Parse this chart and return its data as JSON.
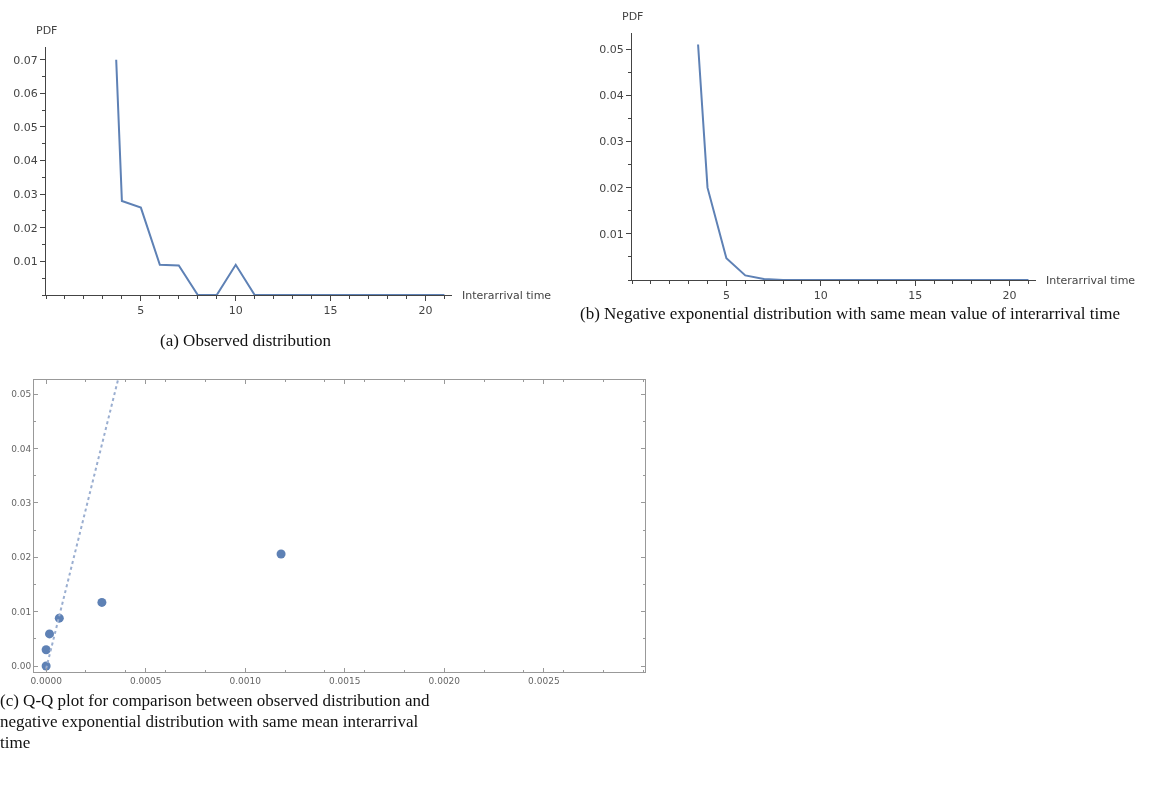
{
  "chart_data": [
    {
      "type": "line",
      "title": "(a) Observed distribution",
      "xlabel": "Interarrival time",
      "ylabel": "PDF",
      "x": [
        3.7,
        4,
        5,
        6,
        7,
        8,
        9,
        10,
        11,
        12,
        13,
        14,
        15,
        16,
        17,
        18,
        19,
        20,
        21
      ],
      "values": [
        0.07,
        0.028,
        0.026,
        0.009,
        0.0088,
        0,
        0,
        0.009,
        0,
        0,
        0,
        0,
        0,
        0,
        0,
        0,
        0,
        0,
        0
      ],
      "color": "#5e81b5",
      "xlim": [
        0,
        21.4
      ],
      "ylim": [
        0,
        0.0738
      ],
      "xticks": [
        5,
        10,
        15,
        20
      ],
      "yticks": [
        0.01,
        0.02,
        0.03,
        0.04,
        0.05,
        0.06,
        0.07
      ],
      "grid": false
    },
    {
      "type": "line",
      "title": "(b) Negative exponential distribution with same mean value of interarrival time",
      "xlabel": "Interarrival time",
      "ylabel": "PDF",
      "x": [
        3.5,
        4,
        5,
        6,
        7,
        8,
        9,
        10,
        11,
        12,
        13,
        14,
        15,
        16,
        17,
        18,
        19,
        20,
        21
      ],
      "values": [
        0.051,
        0.02,
        0.0047,
        0.001,
        0.0002,
        0,
        0,
        0,
        0,
        0,
        0,
        0,
        0,
        0,
        0,
        0,
        0,
        0,
        0
      ],
      "color": "#5e81b5",
      "xlim": [
        0,
        21.4
      ],
      "ylim": [
        0,
        0.0535
      ],
      "xticks": [
        5,
        10,
        15,
        20
      ],
      "yticks": [
        0.01,
        0.02,
        0.03,
        0.04,
        0.05
      ],
      "grid": false
    },
    {
      "type": "scatter",
      "title": "(c) Q-Q plot for comparison between observed distribution and negative exponential distribution with same mean interarrival time",
      "series": [
        {
          "type": "scatter",
          "color": "#5e81b5",
          "marker": "circle",
          "x": [
            0,
            0,
            1.7e-05,
            6.6e-05,
            0.00028,
            0.00118
          ],
          "values": [
            0,
            0.003,
            0.0059,
            0.0088,
            0.0117,
            0.0206
          ]
        },
        {
          "type": "line",
          "color": "#9aaed0",
          "line_style": "dotted",
          "x": [
            0,
            0.00036
          ],
          "values": [
            -0.0005,
            0.0525
          ]
        }
      ],
      "xlim": [
        -6.1e-05,
        0.003008
      ],
      "ylim": [
        -0.0011,
        0.0526
      ],
      "xticks": [
        {
          "value": 0,
          "label": "0.0000"
        },
        0.0005,
        {
          "value": 0.001,
          "label": "0.0010"
        },
        0.0015,
        {
          "value": 0.002,
          "label": "0.0020"
        },
        0.0025
      ],
      "yticks": [
        {
          "value": 0,
          "label": "0.00"
        },
        0.01,
        0.02,
        0.03,
        0.04,
        0.05
      ],
      "grid": false
    }
  ]
}
